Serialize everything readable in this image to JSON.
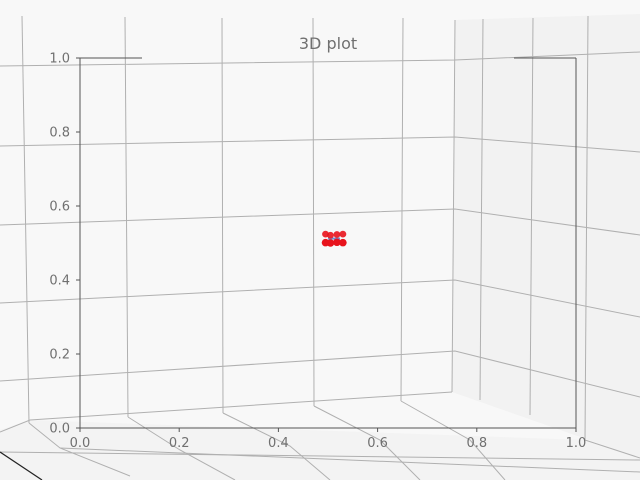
{
  "chart_data": {
    "type": "scatter",
    "title": "3D plot",
    "xlabel": "",
    "ylabel": "",
    "xlim": [
      0.0,
      1.0
    ],
    "ylim": [
      0.0,
      1.0
    ],
    "grid": true,
    "x_ticks": [
      "0.0",
      "0.2",
      "0.4",
      "0.6",
      "0.8",
      "1.0"
    ],
    "y_ticks": [
      "0.0",
      "0.2",
      "0.4",
      "0.6",
      "0.8",
      "1.0"
    ],
    "x_tick_values": [
      0.0,
      0.2,
      0.4,
      0.6,
      0.8,
      1.0
    ],
    "y_tick_values": [
      0.0,
      0.2,
      0.4,
      0.6,
      0.8,
      1.0
    ],
    "points": [
      {
        "x": 0.495,
        "y": 0.524,
        "depth": "far"
      },
      {
        "x": 0.505,
        "y": 0.521,
        "depth": "far"
      },
      {
        "x": 0.518,
        "y": 0.523,
        "depth": "far"
      },
      {
        "x": 0.53,
        "y": 0.524,
        "depth": "far"
      },
      {
        "x": 0.495,
        "y": 0.501,
        "depth": "near"
      },
      {
        "x": 0.505,
        "y": 0.5,
        "depth": "near"
      },
      {
        "x": 0.518,
        "y": 0.502,
        "depth": "near"
      },
      {
        "x": 0.53,
        "y": 0.501,
        "depth": "near"
      }
    ],
    "marker_color": "#e8131c",
    "center_marker_color": "#6f8fd0",
    "pane_color": "#f2f2f2",
    "grid_color": "#b0b0b0"
  }
}
